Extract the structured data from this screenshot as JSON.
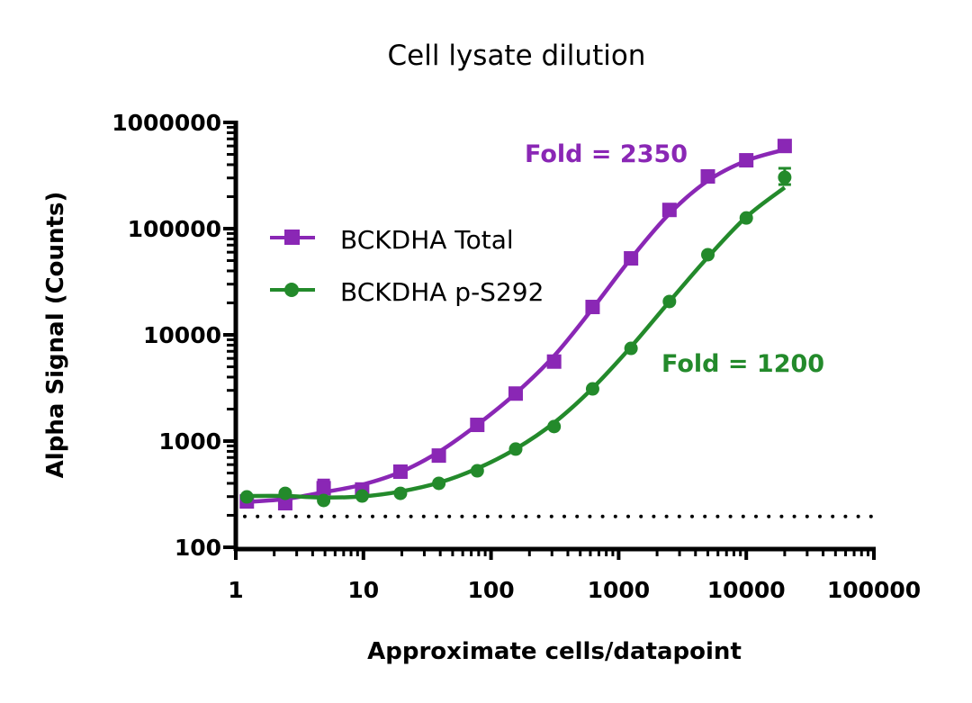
{
  "chart_data": {
    "type": "line",
    "title": "Cell lysate dilution",
    "xlabel": "Approximate cells/datapoint",
    "ylabel": "Alpha Signal (Counts)",
    "xscale": "log",
    "yscale": "log",
    "xlim": [
      1,
      100000
    ],
    "ylim": [
      100,
      1000000
    ],
    "xticks": [
      "1",
      "10",
      "100",
      "1000",
      "10000",
      "100000"
    ],
    "yticks": [
      "100",
      "1000",
      "10000",
      "100000",
      "1000000"
    ],
    "grid": false,
    "legend_position": "upper-left",
    "x": [
      1.22,
      2.44,
      4.88,
      9.77,
      19.5,
      39,
      78,
      156,
      312,
      625,
      1250,
      2500,
      5000,
      10000,
      20000
    ],
    "series": [
      {
        "name": "BCKDHA Total",
        "color": "#8A27B5",
        "marker": "square",
        "values": [
          270,
          260,
          360,
          350,
          515,
          730,
          1420,
          2800,
          5600,
          18300,
          52500,
          150000,
          310000,
          440000,
          600000
        ],
        "error_high": [
          null,
          null,
          430,
          null,
          null,
          null,
          null,
          null,
          null,
          null,
          null,
          null,
          null,
          null,
          null
        ],
        "annotation": "Fold = 2350"
      },
      {
        "name": "BCKDHA p-S292",
        "color": "#238A2B",
        "marker": "circle",
        "values": [
          298,
          322,
          276,
          304,
          322,
          400,
          525,
          840,
          1370,
          3100,
          7460,
          20600,
          56800,
          126000,
          304000
        ],
        "error_high": [
          null,
          null,
          null,
          null,
          null,
          null,
          null,
          null,
          null,
          null,
          null,
          null,
          null,
          null,
          370000
        ],
        "error_low": [
          null,
          null,
          null,
          null,
          null,
          null,
          null,
          null,
          null,
          null,
          null,
          null,
          null,
          null,
          260000
        ],
        "annotation": "Fold = 1200"
      }
    ],
    "reference_line": {
      "y": 195,
      "style": "dotted",
      "color": "#000000"
    }
  }
}
